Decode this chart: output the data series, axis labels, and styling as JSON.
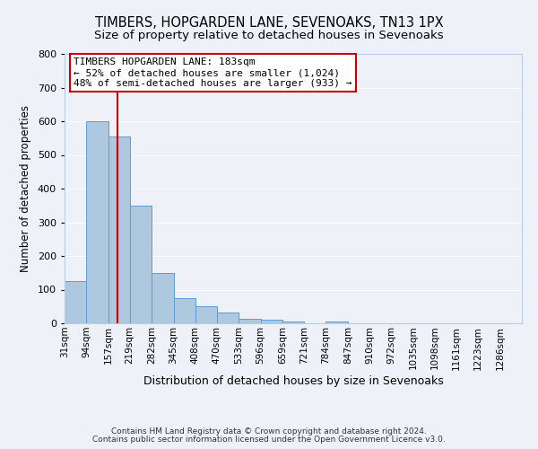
{
  "title": "TIMBERS, HOPGARDEN LANE, SEVENOAKS, TN13 1PX",
  "subtitle": "Size of property relative to detached houses in Sevenoaks",
  "xlabel": "Distribution of detached houses by size in Sevenoaks",
  "ylabel": "Number of detached properties",
  "bin_edges": [
    31,
    94,
    157,
    219,
    282,
    345,
    408,
    470,
    533,
    596,
    659,
    721,
    784,
    847,
    910,
    972,
    1035,
    1098,
    1161,
    1223,
    1286
  ],
  "bar_heights": [
    125,
    600,
    555,
    350,
    150,
    75,
    50,
    33,
    13,
    10,
    5,
    0,
    5,
    0,
    0,
    0,
    0,
    0,
    0,
    0
  ],
  "bar_labels": [
    "31sqm",
    "94sqm",
    "157sqm",
    "219sqm",
    "282sqm",
    "345sqm",
    "408sqm",
    "470sqm",
    "533sqm",
    "596sqm",
    "659sqm",
    "721sqm",
    "784sqm",
    "847sqm",
    "910sqm",
    "972sqm",
    "1035sqm",
    "1098sqm",
    "1161sqm",
    "1223sqm",
    "1286sqm"
  ],
  "bar_color": "#aec8e0",
  "bar_edgecolor": "#5b9bd5",
  "vline_x": 183,
  "vline_color": "#cc0000",
  "ylim": [
    0,
    800
  ],
  "yticks": [
    0,
    100,
    200,
    300,
    400,
    500,
    600,
    700,
    800
  ],
  "annotation_title": "TIMBERS HOPGARDEN LANE: 183sqm",
  "annotation_line1": "← 52% of detached houses are smaller (1,024)",
  "annotation_line2": "48% of semi-detached houses are larger (933) →",
  "annotation_box_facecolor": "#ffffff",
  "annotation_box_edgecolor": "#cc0000",
  "footer1": "Contains HM Land Registry data © Crown copyright and database right 2024.",
  "footer2": "Contains public sector information licensed under the Open Government Licence v3.0.",
  "background_color": "#eef2f8",
  "grid_color": "#ffffff",
  "title_fontsize": 10.5,
  "subtitle_fontsize": 9.5,
  "xlabel_fontsize": 9,
  "ylabel_fontsize": 8.5,
  "tick_fontsize": 8,
  "annotation_fontsize": 8,
  "footer_fontsize": 6.5
}
